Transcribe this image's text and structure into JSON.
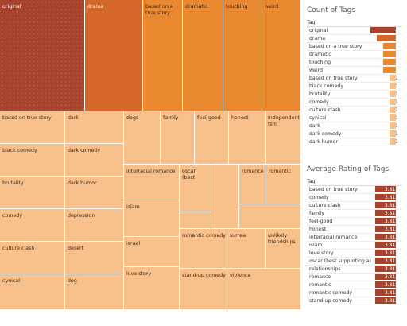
{
  "chart_data": [
    {
      "type": "treemap",
      "cells": [
        {
          "label": "original",
          "value": 4,
          "color": "#a7432c",
          "dark": true
        },
        {
          "label": "drama",
          "value": 3,
          "color": "#d4682b",
          "dark": true
        },
        {
          "label": "based on a true story",
          "value": 2,
          "color": "#ea8830"
        },
        {
          "label": "dramatic",
          "value": 2,
          "color": "#ea8830"
        },
        {
          "label": "touching",
          "value": 2,
          "color": "#ea8830"
        },
        {
          "label": "weird",
          "value": 2,
          "color": "#ea8830"
        },
        {
          "label": "based on true story",
          "value": 1,
          "color": "#f8c08a"
        },
        {
          "label": "dark",
          "value": 1,
          "color": "#f8c08a"
        },
        {
          "label": "dogs",
          "value": 1,
          "color": "#f8c08a"
        },
        {
          "label": "family",
          "value": 1,
          "color": "#f8c08a"
        },
        {
          "label": "feel-good",
          "value": 1,
          "color": "#f8c08a"
        },
        {
          "label": "honest",
          "value": 1,
          "color": "#f8c08a"
        },
        {
          "label": "independent film",
          "value": 1,
          "color": "#f8c08a"
        },
        {
          "label": "black comedy",
          "value": 1,
          "color": "#f8c08a"
        },
        {
          "label": "dark comedy",
          "value": 1,
          "color": "#f8c08a"
        },
        {
          "label": "brutality",
          "value": 1,
          "color": "#f8c08a"
        },
        {
          "label": "dark humor",
          "value": 1,
          "color": "#f8c08a"
        },
        {
          "label": "interracial romance",
          "value": 1,
          "color": "#f8c08a"
        },
        {
          "label": "oscar (best",
          "value": 1,
          "color": "#f8c08a"
        },
        {
          "label": "romance",
          "value": 1,
          "color": "#f8c08a"
        },
        {
          "label": "romantic",
          "value": 1,
          "color": "#f8c08a"
        },
        {
          "label": "comedy",
          "value": 1,
          "color": "#f8c08a"
        },
        {
          "label": "depression",
          "value": 1,
          "color": "#f8c08a"
        },
        {
          "label": "islam",
          "value": 1,
          "color": "#f8c08a"
        },
        {
          "label": "culture clash",
          "value": 1,
          "color": "#f8c08a"
        },
        {
          "label": "desert",
          "value": 1,
          "color": "#f8c08a"
        },
        {
          "label": "israel",
          "value": 1,
          "color": "#f8c08a"
        },
        {
          "label": "romantic comedy",
          "value": 1,
          "color": "#f8c08a"
        },
        {
          "label": "surreal",
          "value": 1,
          "color": "#f8c08a"
        },
        {
          "label": "unlikely friendships",
          "value": 1,
          "color": "#f8c08a"
        },
        {
          "label": "cynical",
          "value": 1,
          "color": "#f8c08a"
        },
        {
          "label": "dog",
          "value": 1,
          "color": "#f8c08a"
        },
        {
          "label": "love story",
          "value": 1,
          "color": "#f8c08a"
        },
        {
          "label": "stand-up comedy",
          "value": 1,
          "color": "#f8c08a"
        },
        {
          "label": "violence",
          "value": 1,
          "color": "#f8c08a"
        },
        {
          "label": "",
          "value": 1,
          "color": "#f8c08a"
        },
        {
          "label": "",
          "value": 1,
          "color": "#f8c08a"
        },
        {
          "label": "",
          "value": 1,
          "color": "#f8c08a"
        },
        {
          "label": "",
          "value": 1,
          "color": "#f8c08a"
        }
      ]
    },
    {
      "type": "bar",
      "title": "Count of Tags",
      "column_header": "Tag",
      "categories": [
        "original",
        "drama",
        "based on a true story",
        "dramatic",
        "touching",
        "weird",
        "based on true story",
        "black comedy",
        "brutality",
        "comedy",
        "culture clash",
        "cynical",
        "dark",
        "dark comedy",
        "dark humor"
      ],
      "values": [
        4,
        3,
        2,
        2,
        2,
        2,
        1,
        1,
        1,
        1,
        1,
        1,
        1,
        1,
        1
      ],
      "colors": [
        "#a7432c",
        "#d4682b",
        "#ea8830",
        "#ea8830",
        "#ea8830",
        "#ea8830",
        "#f8c08a",
        "#f8c08a",
        "#f8c08a",
        "#f8c08a",
        "#f8c08a",
        "#f8c08a",
        "#f8c08a",
        "#f8c08a",
        "#f8c08a"
      ],
      "xlim": [
        0,
        4
      ]
    },
    {
      "type": "bar",
      "title": "Average Rating of Tags",
      "column_header": "Tag",
      "categories": [
        "based on true story",
        "comedy",
        "culture clash",
        "family",
        "feel-good",
        "honest",
        "interracial romance",
        "islam",
        "love story",
        "oscar (best supporting ac..",
        "relationships",
        "romance",
        "romantic",
        "romantic comedy",
        "stand-up comedy"
      ],
      "values": [
        3.812,
        3.812,
        3.812,
        3.812,
        3.812,
        3.812,
        3.812,
        3.812,
        3.812,
        3.812,
        3.812,
        3.812,
        3.812,
        3.812,
        3.812
      ],
      "value_labels": [
        "3.812",
        "3.812",
        "3.812",
        "3.812",
        "3.812",
        "3.812",
        "3.812",
        "3.812",
        "3.812",
        "3.812",
        "3.812",
        "3.812",
        "3.812",
        "3.812",
        "3.812"
      ],
      "color": "#a7432c",
      "xlim": [
        0,
        3.812
      ]
    }
  ]
}
